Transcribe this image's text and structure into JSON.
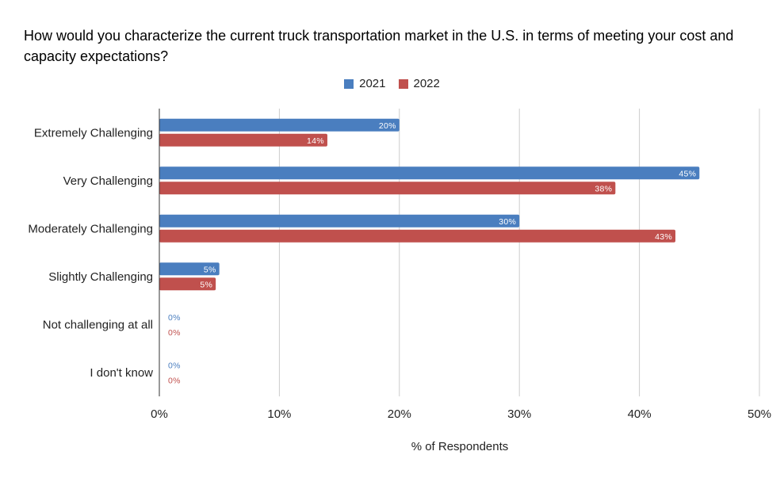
{
  "chart_data": {
    "type": "bar",
    "orientation": "horizontal",
    "title": "How would you characterize the current truck transportation market in the U.S. in terms of meeting your cost and capacity expectations?",
    "xlabel": "% of Respondents",
    "ylabel": "",
    "categories": [
      "Extremely Challenging",
      "Very Challenging",
      "Moderately Challenging",
      "Slightly Challenging",
      "Not challenging at all",
      "I don't know"
    ],
    "series": [
      {
        "name": "2021",
        "color": "#4a7ebf",
        "values": [
          20,
          45,
          30,
          5,
          0,
          0
        ],
        "labels": [
          "20%",
          "45%",
          "30%",
          "5%",
          "0%",
          "0%"
        ]
      },
      {
        "name": "2022",
        "color": "#c0504d",
        "values": [
          14,
          38,
          43,
          4.7,
          0,
          0
        ],
        "labels": [
          "14%",
          "38%",
          "43%",
          "5%",
          "0%",
          "0%"
        ]
      }
    ],
    "xlim": [
      0,
      50
    ],
    "xticks": [
      0,
      10,
      20,
      30,
      40,
      50
    ],
    "xtick_labels": [
      "0%",
      "10%",
      "20%",
      "30%",
      "40%",
      "50%"
    ],
    "grid": true,
    "legend_position": "top-center"
  }
}
